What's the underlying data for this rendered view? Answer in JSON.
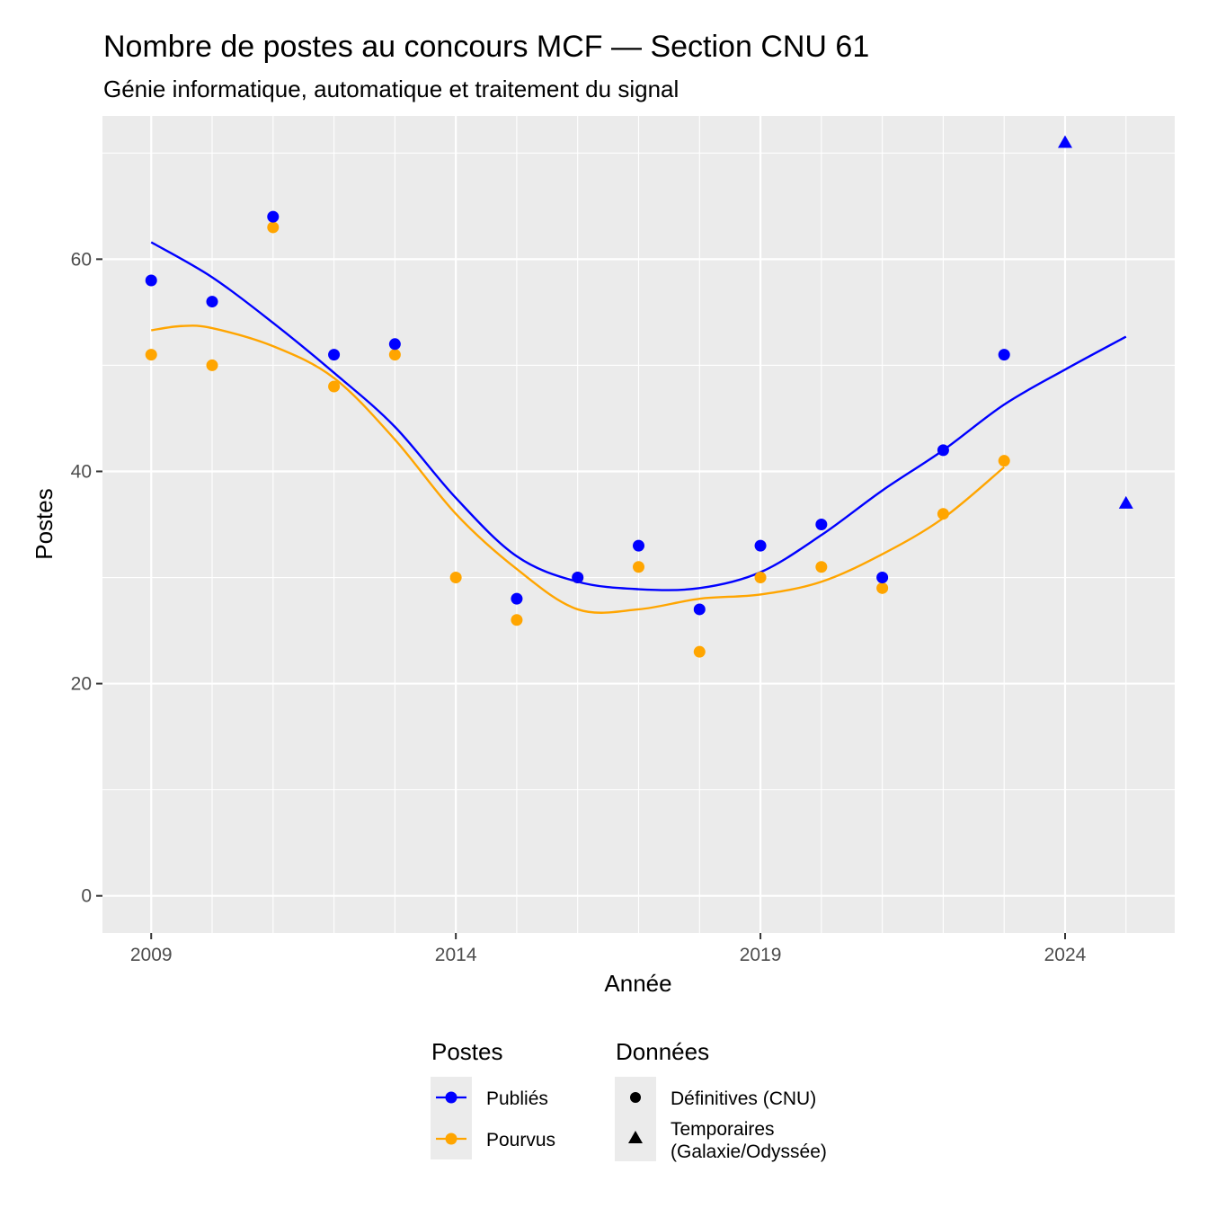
{
  "chart_data": {
    "type": "scatter",
    "title": "Nombre de postes au concours MCF  —  Section CNU 61",
    "subtitle": "Génie informatique, automatique et traitement du signal",
    "xlabel": "Année",
    "ylabel": "Postes",
    "xlim": [
      2008.2,
      2025.8
    ],
    "ylim": [
      -3.5,
      73.5
    ],
    "x_ticks": [
      2009,
      2014,
      2019,
      2024
    ],
    "y_ticks": [
      0,
      20,
      40,
      60
    ],
    "grid": true,
    "legend_position": "bottom",
    "colors": {
      "publies": "#0000FF",
      "pourvus": "#FFA500",
      "panel": "#EBEBEB",
      "grid": "#FFFFFF"
    },
    "series": [
      {
        "name": "Publiés",
        "color": "#0000FF",
        "points": [
          {
            "x": 2009,
            "y": 58,
            "shape": "circle"
          },
          {
            "x": 2010,
            "y": 56,
            "shape": "circle"
          },
          {
            "x": 2011,
            "y": 64,
            "shape": "circle"
          },
          {
            "x": 2012,
            "y": 51,
            "shape": "circle"
          },
          {
            "x": 2013,
            "y": 52,
            "shape": "circle"
          },
          {
            "x": 2015,
            "y": 28,
            "shape": "circle"
          },
          {
            "x": 2016,
            "y": 30,
            "shape": "circle"
          },
          {
            "x": 2017,
            "y": 33,
            "shape": "circle"
          },
          {
            "x": 2018,
            "y": 27,
            "shape": "circle"
          },
          {
            "x": 2019,
            "y": 33,
            "shape": "circle"
          },
          {
            "x": 2020,
            "y": 35,
            "shape": "circle"
          },
          {
            "x": 2021,
            "y": 30,
            "shape": "circle"
          },
          {
            "x": 2022,
            "y": 42,
            "shape": "circle"
          },
          {
            "x": 2023,
            "y": 51,
            "shape": "circle"
          },
          {
            "x": 2024,
            "y": 71,
            "shape": "triangle"
          },
          {
            "x": 2025,
            "y": 37,
            "shape": "triangle"
          }
        ],
        "smooth": [
          [
            2009,
            61.6
          ],
          [
            2010,
            58.3
          ],
          [
            2011,
            54.0
          ],
          [
            2012,
            49.3
          ],
          [
            2013,
            44.2
          ],
          [
            2014,
            37.5
          ],
          [
            2015,
            32.0
          ],
          [
            2016,
            29.6
          ],
          [
            2017,
            28.9
          ],
          [
            2018,
            29.0
          ],
          [
            2019,
            30.5
          ],
          [
            2020,
            34.0
          ],
          [
            2021,
            38.2
          ],
          [
            2022,
            42.0
          ],
          [
            2023,
            46.3
          ],
          [
            2024,
            49.6
          ],
          [
            2025,
            52.7
          ]
        ]
      },
      {
        "name": "Pourvus",
        "color": "#FFA500",
        "points": [
          {
            "x": 2009,
            "y": 51,
            "shape": "circle"
          },
          {
            "x": 2010,
            "y": 50,
            "shape": "circle"
          },
          {
            "x": 2011,
            "y": 63,
            "shape": "circle"
          },
          {
            "x": 2012,
            "y": 48,
            "shape": "circle"
          },
          {
            "x": 2013,
            "y": 51,
            "shape": "circle"
          },
          {
            "x": 2014,
            "y": 30,
            "shape": "circle"
          },
          {
            "x": 2015,
            "y": 26,
            "shape": "circle"
          },
          {
            "x": 2016,
            "y": 30,
            "shape": "circle"
          },
          {
            "x": 2017,
            "y": 31,
            "shape": "circle"
          },
          {
            "x": 2018,
            "y": 23,
            "shape": "circle"
          },
          {
            "x": 2019,
            "y": 30,
            "shape": "circle"
          },
          {
            "x": 2020,
            "y": 31,
            "shape": "circle"
          },
          {
            "x": 2021,
            "y": 29,
            "shape": "circle"
          },
          {
            "x": 2022,
            "y": 36,
            "shape": "circle"
          },
          {
            "x": 2023,
            "y": 41,
            "shape": "circle"
          }
        ],
        "smooth": [
          [
            2009,
            53.3
          ],
          [
            2009.5,
            53.7
          ],
          [
            2010,
            53.5
          ],
          [
            2011,
            51.8
          ],
          [
            2012,
            48.8
          ],
          [
            2013,
            43.0
          ],
          [
            2014,
            36.0
          ],
          [
            2015,
            30.8
          ],
          [
            2016,
            27.0
          ],
          [
            2017,
            27.0
          ],
          [
            2018,
            28.0
          ],
          [
            2019,
            28.4
          ],
          [
            2020,
            29.6
          ],
          [
            2021,
            32.2
          ],
          [
            2022,
            35.6
          ],
          [
            2023,
            40.4
          ]
        ]
      }
    ],
    "legends": [
      {
        "title": "Postes",
        "items": [
          {
            "label": "Publiés",
            "color": "#0000FF"
          },
          {
            "label": "Pourvus",
            "color": "#FFA500"
          }
        ]
      },
      {
        "title": "Données",
        "items": [
          {
            "label": "Définitives (CNU)",
            "shape": "circle"
          },
          {
            "label_lines": [
              "Temporaires",
              "(Galaxie/Odyssée)"
            ],
            "shape": "triangle"
          }
        ]
      }
    ]
  }
}
